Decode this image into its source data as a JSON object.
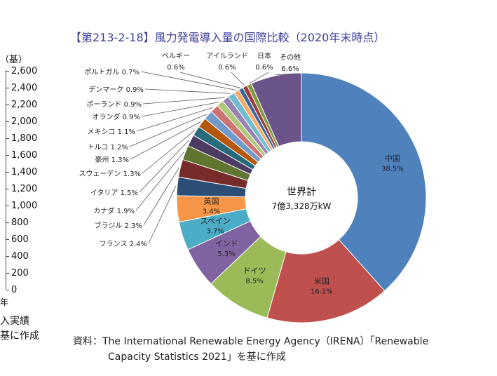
{
  "left_axis": {
    "unit": "（基）",
    "ticks": [
      "2,600",
      "2,400",
      "2,200",
      "2,000",
      "1,800",
      "1,600",
      "1,400",
      "1,200",
      "1,000",
      "800",
      "600",
      "400",
      "200",
      "0"
    ],
    "year_suffix": "年",
    "note_line1": "入実績",
    "note_line2": "基に作成"
  },
  "chart_data": {
    "type": "pie",
    "title": "【第213-2-18】風力発電導入量の国際比較（2020年末時点）",
    "center_label_line1": "世界計",
    "center_label_line2": "7億3,328万kW",
    "slices": [
      {
        "name": "中国",
        "value": 38.5,
        "label": "38.5%",
        "color": "#4f81bd",
        "label_inside": true
      },
      {
        "name": "米国",
        "value": 16.1,
        "label": "16.1%",
        "color": "#c0504d",
        "label_inside": true
      },
      {
        "name": "ドイツ",
        "value": 8.5,
        "label": "8.5%",
        "color": "#9bbb59",
        "label_inside": true
      },
      {
        "name": "インド",
        "value": 5.3,
        "label": "5.3%",
        "color": "#8064a2",
        "label_inside": true
      },
      {
        "name": "スペイン",
        "value": 3.7,
        "label": "3.7%",
        "color": "#4bacc6",
        "label_inside": true
      },
      {
        "name": "英国",
        "value": 3.4,
        "label": "3.4%",
        "color": "#f79646",
        "label_inside": true
      },
      {
        "name": "フランス",
        "value": 2.4,
        "label": "2.4%",
        "color": "#2c4d75",
        "label_inside": false
      },
      {
        "name": "ブラジル",
        "value": 2.3,
        "label": "2.3%",
        "color": "#772c2a",
        "label_inside": false
      },
      {
        "name": "カナダ",
        "value": 1.9,
        "label": "1.9%",
        "color": "#5f7530",
        "label_inside": false
      },
      {
        "name": "イタリア",
        "value": 1.5,
        "label": "1.5%",
        "color": "#4d3b62",
        "label_inside": false
      },
      {
        "name": "スウェーデン",
        "value": 1.3,
        "label": "1.3%",
        "color": "#276a7c",
        "label_inside": false
      },
      {
        "name": "豪州",
        "value": 1.3,
        "label": "1.3%",
        "color": "#b65708",
        "label_inside": false
      },
      {
        "name": "トルコ",
        "value": 1.2,
        "label": "1.2%",
        "color": "#729aca",
        "label_inside": false
      },
      {
        "name": "メキシコ",
        "value": 1.1,
        "label": "1.1%",
        "color": "#cd7371",
        "label_inside": false
      },
      {
        "name": "オランダ",
        "value": 0.9,
        "label": "0.9%",
        "color": "#afc97a",
        "label_inside": false
      },
      {
        "name": "ポーランド",
        "value": 0.9,
        "label": "0.9%",
        "color": "#9983b5",
        "label_inside": false
      },
      {
        "name": "デンマーク",
        "value": 0.9,
        "label": "0.9%",
        "color": "#6fbdd1",
        "label_inside": false
      },
      {
        "name": "ポルトガル",
        "value": 0.7,
        "label": "0.7%",
        "color": "#f9ab6b",
        "label_inside": false
      },
      {
        "name": "ベルギー",
        "value": 0.6,
        "label": "0.6%",
        "color": "#3a679c",
        "label_inside": false
      },
      {
        "name": "アイルランド",
        "value": 0.6,
        "label": "0.6%",
        "color": "#9e3b38",
        "label_inside": false
      },
      {
        "name": "日本",
        "value": 0.6,
        "label": "0.6%",
        "color": "#7e9d40",
        "label_inside": false
      },
      {
        "name": "その他",
        "value": 6.6,
        "label": "6.6%",
        "color": "#6b5489",
        "label_inside": false
      }
    ]
  },
  "source": {
    "line1": "資料：The International Renewable Energy Agency（IRENA）「Renewable",
    "line2": "Capacity Statistics 2021」を基に作成"
  },
  "colors": {
    "title": "#3b3f9a",
    "leader_line": "#555555"
  }
}
